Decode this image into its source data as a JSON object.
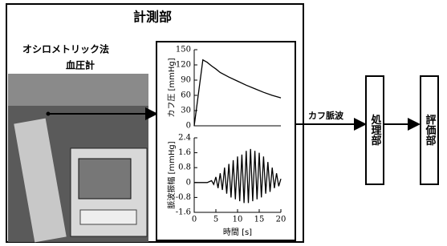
{
  "title": "計測部",
  "device_label": [
    "オシロメトリック法",
    "血圧計"
  ],
  "signal_label": "カフ脈波",
  "blocks": [
    "処理部",
    "評価部"
  ],
  "chart_data": [
    {
      "type": "line",
      "ylabel": "カフ圧 [mmHg]",
      "x": [
        0,
        2,
        3,
        4,
        5,
        6,
        8,
        10,
        12,
        14,
        16,
        18,
        20
      ],
      "values": [
        0,
        130,
        125,
        118,
        112,
        105,
        96,
        88,
        80,
        73,
        66,
        60,
        55
      ],
      "xlim": [
        0,
        20
      ],
      "ylim": [
        0,
        150
      ],
      "yticks": [
        0,
        30,
        60,
        90,
        120,
        150
      ]
    },
    {
      "type": "line",
      "ylabel": "脈波振幅 [mmHg]",
      "xlabel": "時間 [s]",
      "x": [
        0,
        3,
        4,
        4.5,
        5,
        5.5,
        6,
        6.5,
        7,
        7.5,
        8,
        8.5,
        9,
        9.5,
        10,
        10.5,
        11,
        11.5,
        12,
        12.5,
        13,
        13.5,
        14,
        14.5,
        15,
        15.5,
        16,
        16.5,
        17,
        17.5,
        18,
        18.5,
        19,
        19.5,
        20
      ],
      "values": [
        0,
        0,
        0.1,
        -0.1,
        0.3,
        -0.3,
        0.5,
        -0.4,
        0.8,
        -0.6,
        1.0,
        -0.8,
        1.2,
        -0.9,
        1.4,
        -1.0,
        1.5,
        -1.1,
        1.7,
        -1.1,
        1.8,
        -1.0,
        1.7,
        -0.9,
        1.6,
        -0.8,
        1.4,
        -0.6,
        1.1,
        -0.5,
        0.8,
        -0.3,
        0.5,
        -0.2,
        0.2
      ],
      "xlim": [
        0,
        20
      ],
      "ylim": [
        -1.6,
        2.4
      ],
      "yticks": [
        -1.6,
        -0.8,
        0,
        0.8,
        1.6,
        2.4
      ],
      "xticks": [
        0,
        5,
        10,
        15,
        20
      ]
    }
  ]
}
